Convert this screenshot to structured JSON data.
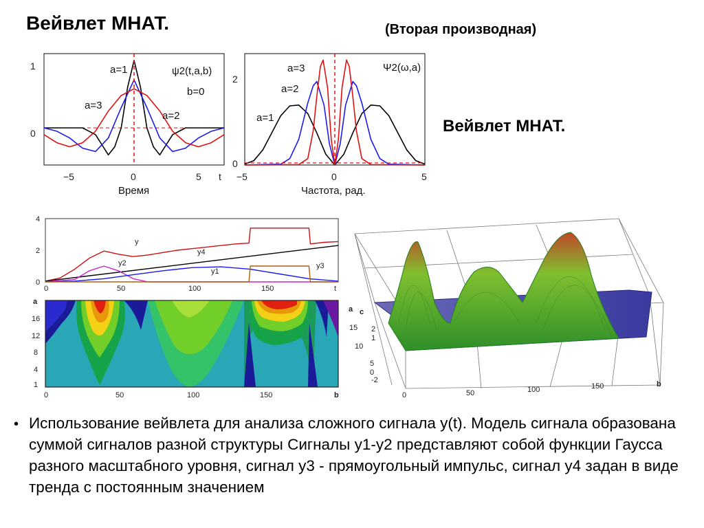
{
  "title": "Вейвлет МНАТ.",
  "subtitle": "(Вторая производная)",
  "side_title": "Вейвлет МНАТ.",
  "bullet": "Использование вейвлета для анализа сложного сигнала  y(t). Модель сигнала образована суммой сигналов разной структуры Сигналы y1-y2 представляют собой функции Гаусса разного масштабного уровня, сигнал y3 - прямоугольный импульс, сигнал y4 задан в виде тренда с постоянным значением",
  "colors": {
    "a1": "#000000",
    "a2": "#1a1aee",
    "a3": "#e01010",
    "zero": "#e01010"
  },
  "chart_data": [
    {
      "type": "line",
      "ylabel": "",
      "xlabel": "Время",
      "x_unit_label": "t",
      "xlim": [
        -7,
        7
      ],
      "ylim": [
        -0.55,
        1.1
      ],
      "xticks": [
        "−5",
        "0",
        "5"
      ],
      "yticks": [
        "0",
        "1"
      ],
      "annotations": [
        "a=1",
        "a=3",
        "a=2",
        "ψ2(t,a,b)",
        "b=0"
      ],
      "series": [
        {
          "name": "a=1",
          "color": "#000000",
          "x": [
            -7,
            -6,
            -5,
            -4,
            -3,
            -2.5,
            -2,
            -1.5,
            -1,
            -0.5,
            0,
            0.5,
            1,
            1.5,
            2,
            2.5,
            3,
            4,
            5,
            6,
            7
          ],
          "y": [
            0,
            0,
            0,
            0,
            -0.1,
            -0.25,
            -0.4,
            -0.28,
            0,
            0.6,
            1.0,
            0.6,
            0,
            -0.28,
            -0.4,
            -0.25,
            -0.1,
            0,
            0,
            0,
            0
          ]
        },
        {
          "name": "a=2",
          "color": "#1a1aee",
          "x": [
            -7,
            -6,
            -5,
            -4,
            -3,
            -2,
            -1,
            0,
            1,
            2,
            3,
            4,
            5,
            6,
            7
          ],
          "y": [
            0,
            -0.05,
            -0.15,
            -0.3,
            -0.35,
            -0.15,
            0.3,
            0.71,
            0.3,
            -0.15,
            -0.35,
            -0.3,
            -0.15,
            -0.05,
            0
          ]
        },
        {
          "name": "a=3",
          "color": "#e01010",
          "x": [
            -7,
            -6,
            -5,
            -4,
            -3,
            -2,
            -1,
            0,
            1,
            2,
            3,
            4,
            5,
            6,
            7
          ],
          "y": [
            -0.1,
            -0.22,
            -0.28,
            -0.22,
            -0.05,
            0.25,
            0.48,
            0.58,
            0.48,
            0.25,
            -0.05,
            -0.22,
            -0.28,
            -0.22,
            -0.1
          ]
        }
      ]
    },
    {
      "type": "line",
      "xlabel": "Частота, рад.",
      "xlim": [
        -5,
        5
      ],
      "ylim": [
        0,
        2.6
      ],
      "xticks": [
        "−5",
        "0",
        "5"
      ],
      "yticks": [
        "0",
        "2"
      ],
      "annotations": [
        "a=3",
        "a=2",
        "a=1",
        "Ψ2(ω,a)"
      ],
      "series": [
        {
          "name": "a=1",
          "color": "#000000",
          "x": [
            -5,
            -4.5,
            -4,
            -3.5,
            -3,
            -2.5,
            -2,
            -1.5,
            -1,
            -0.5,
            0,
            0.5,
            1,
            1.5,
            2,
            2.5,
            3,
            3.5,
            4,
            4.5,
            5
          ],
          "y": [
            0.02,
            0.1,
            0.35,
            0.75,
            1.15,
            1.38,
            1.4,
            1.2,
            0.75,
            0.25,
            0,
            0.25,
            0.75,
            1.2,
            1.4,
            1.38,
            1.15,
            0.75,
            0.35,
            0.1,
            0.02
          ]
        },
        {
          "name": "a=2",
          "color": "#1a1aee",
          "x": [
            -5,
            -3,
            -2.5,
            -2,
            -1.5,
            -1.2,
            -1,
            -0.6,
            -0.3,
            0,
            0.3,
            0.6,
            1,
            1.2,
            1.5,
            2,
            2.5,
            3,
            5
          ],
          "y": [
            0,
            0.02,
            0.15,
            0.6,
            1.45,
            1.85,
            1.95,
            1.4,
            0.5,
            0,
            0.5,
            1.4,
            1.95,
            1.85,
            1.45,
            0.6,
            0.15,
            0.02,
            0
          ]
        },
        {
          "name": "a=3",
          "color": "#e01010",
          "x": [
            -5,
            -2,
            -1.5,
            -1.2,
            -1,
            -0.8,
            -0.65,
            -0.4,
            -0.2,
            0,
            0.2,
            0.4,
            0.65,
            0.8,
            1,
            1.2,
            1.5,
            2,
            5
          ],
          "y": [
            0,
            0.01,
            0.15,
            0.8,
            1.6,
            2.3,
            2.45,
            1.8,
            0.6,
            0,
            0.6,
            1.8,
            2.45,
            2.3,
            1.6,
            0.8,
            0.15,
            0.01,
            0
          ]
        }
      ]
    },
    {
      "type": "line",
      "xlim": [
        0,
        200
      ],
      "ylim": [
        0,
        4
      ],
      "xticks": [
        "0",
        "50",
        "100",
        "150",
        "t"
      ],
      "yticks": [
        "0",
        "2",
        "4"
      ],
      "annotations": [
        "y",
        "y4",
        "y2",
        "y1",
        "y3"
      ],
      "series": [
        {
          "name": "y",
          "color": "#cc1010",
          "x": [
            0,
            10,
            20,
            30,
            40,
            50,
            60,
            70,
            80,
            90,
            100,
            110,
            120,
            130,
            139,
            140,
            150,
            160,
            170,
            180,
            181,
            190,
            200
          ],
          "y": [
            0.05,
            0.25,
            0.8,
            1.5,
            1.95,
            1.75,
            1.6,
            1.7,
            1.85,
            2.0,
            2.1,
            2.2,
            2.3,
            2.4,
            2.45,
            3.4,
            3.4,
            3.4,
            3.4,
            3.4,
            2.4,
            2.5,
            2.55
          ]
        },
        {
          "name": "y4",
          "color": "#000000",
          "x": [
            0,
            200
          ],
          "y": [
            0.05,
            2.3
          ]
        },
        {
          "name": "y2",
          "color": "#cc22cc",
          "x": [
            0,
            20,
            30,
            40,
            50,
            60,
            70,
            200
          ],
          "y": [
            0,
            0.15,
            0.7,
            1.0,
            0.7,
            0.2,
            0,
            0
          ]
        },
        {
          "name": "y1",
          "color": "#1a1aee",
          "x": [
            0,
            20,
            40,
            60,
            80,
            100,
            120,
            140,
            160,
            180,
            200
          ],
          "y": [
            0,
            0.05,
            0.2,
            0.45,
            0.7,
            0.9,
            0.95,
            0.8,
            0.5,
            0.2,
            0.05
          ]
        },
        {
          "name": "y3",
          "color": "#b06010",
          "x": [
            0,
            139,
            140,
            180,
            181,
            200
          ],
          "y": [
            0,
            0,
            1.0,
            1.0,
            0,
            0
          ]
        }
      ]
    },
    {
      "type": "heatmap",
      "xlim": [
        0,
        200
      ],
      "ylim": [
        1,
        20
      ],
      "xticks": [
        "0",
        "50",
        "100",
        "150"
      ],
      "yticks": [
        "1",
        "4",
        "8",
        "12",
        "16"
      ],
      "axis_labels": [
        "a",
        "b"
      ]
    },
    {
      "type": "surface",
      "xticks": [
        "0",
        "50",
        "100",
        "150"
      ],
      "yticks": [
        "-2",
        "0",
        "5",
        "10",
        "15"
      ],
      "zticks": [
        "2",
        "1"
      ],
      "axis_labels": [
        "a",
        "c",
        "b"
      ]
    }
  ]
}
